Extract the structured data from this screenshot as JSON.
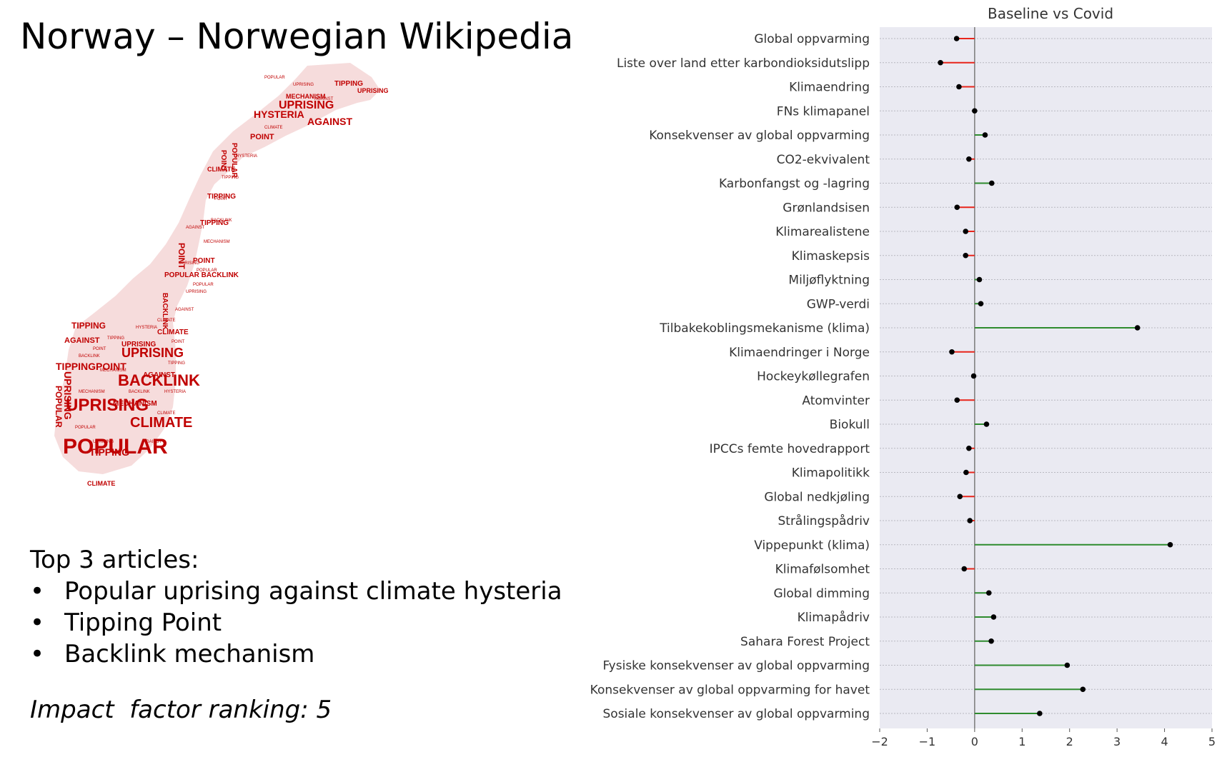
{
  "slide": {
    "title": "Norway – Norwegian Wikipedia",
    "top_heading": "Top 3 articles:",
    "top_articles": [
      "Popular uprising against climate hysteria",
      "Tipping Point",
      "Backlink mechanism"
    ],
    "impact": "Impact  factor ranking: 5"
  },
  "wordcloud": {
    "words": [
      "POPULAR",
      "UPRISING",
      "AGAINST",
      "CLIMATE",
      "HYSTERIA",
      "TIPPING",
      "POINT",
      "BACKLINK",
      "MECHANISM"
    ],
    "color": "#c00000"
  },
  "chart_data": {
    "type": "lollipop",
    "title": "Baseline vs Covid",
    "categories": [
      "Global oppvarming",
      "Liste over land etter karbondioksidutslipp",
      "Klimaendring",
      "FNs klimapanel",
      "Konsekvenser av global oppvarming",
      "CO2-ekvivalent",
      "Karbonfangst og -lagring",
      "Grønlandsisen",
      "Klimarealistene",
      "Klimaskepsis",
      "Miljøflyktning",
      "GWP-verdi",
      "Tilbakekoblingsmekanisme (klima)",
      "Klimaendringer i Norge",
      "Hockeykøllegrafen",
      "Atomvinter",
      "Biokull",
      "IPCCs femte hovedrapport",
      "Klimapolitikk",
      "Global nedkjøling",
      "Strålingspådriv",
      "Vippepunkt (klima)",
      "Klimafølsomhet",
      "Global dimming",
      "Klimapådriv",
      "Sahara Forest Project",
      "Fysiske konsekvenser av global oppvarming",
      "Konsekvenser av global oppvarming for havet",
      "Sosiale konsekvenser av global oppvarming"
    ],
    "values": [
      -0.38,
      -0.72,
      -0.33,
      0.0,
      0.22,
      -0.12,
      0.36,
      -0.37,
      -0.19,
      -0.19,
      0.1,
      0.13,
      3.43,
      -0.48,
      -0.02,
      -0.37,
      0.25,
      -0.12,
      -0.18,
      -0.31,
      -0.1,
      4.12,
      -0.22,
      0.3,
      0.4,
      0.35,
      1.95,
      2.28,
      1.37
    ],
    "xlim": [
      -2,
      5
    ],
    "xticks": [
      -2,
      -1,
      0,
      1,
      2,
      3,
      4,
      5
    ],
    "xtick_labels": [
      "−2",
      "−1",
      "0",
      "1",
      "2",
      "3",
      "4",
      "5"
    ],
    "colors": {
      "positive": "#2e8b2e",
      "negative": "#e8251b",
      "marker": "#000000",
      "background": "#eaeaf2",
      "grid": "#b8b8c0",
      "zero_line": "#7a7a7a"
    },
    "grid": true
  }
}
